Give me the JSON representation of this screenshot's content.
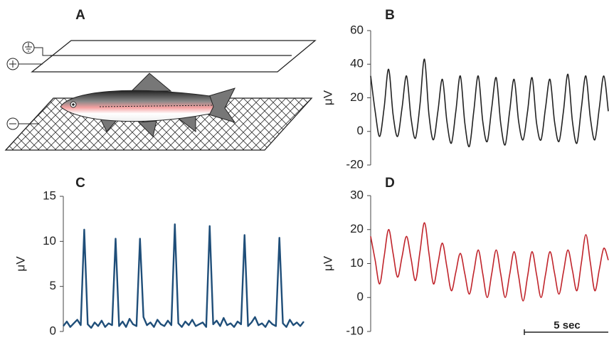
{
  "panel_a": {
    "label": "A"
  },
  "chart_data": [
    {
      "type": "line",
      "label": "B",
      "ylabel": "μV",
      "color": "#222222",
      "ylim": [
        -20,
        60
      ],
      "yticks": [
        -20,
        0,
        20,
        40,
        60
      ],
      "values": [
        33,
        12,
        -3,
        14,
        37,
        10,
        -3,
        14,
        33,
        8,
        -4,
        16,
        43,
        10,
        -5,
        12,
        31,
        6,
        -7,
        12,
        33,
        5,
        -9,
        12,
        33,
        6,
        -6,
        14,
        32,
        5,
        -8,
        12,
        31,
        6,
        -5,
        12,
        32,
        5,
        -5,
        14,
        31,
        6,
        -6,
        12,
        34,
        6,
        -7,
        14,
        33,
        8,
        -5,
        14,
        33,
        12
      ]
    },
    {
      "type": "line",
      "label": "C",
      "ylabel": "μV",
      "color": "#1f4e79",
      "ylim": [
        0,
        15
      ],
      "yticks": [
        0,
        5,
        10,
        15
      ],
      "values": [
        0.6,
        1.1,
        0.5,
        0.9,
        1.3,
        0.7,
        11.3,
        0.8,
        0.4,
        1.0,
        0.6,
        1.2,
        0.5,
        0.9,
        0.7,
        10.3,
        0.6,
        1.1,
        0.5,
        1.4,
        0.8,
        0.6,
        10.3,
        1.6,
        0.7,
        1.0,
        0.5,
        1.3,
        0.8,
        0.6,
        1.2,
        0.7,
        11.9,
        0.9,
        0.5,
        1.1,
        0.7,
        1.3,
        0.6,
        0.8,
        1.0,
        0.5,
        11.7,
        0.8,
        1.2,
        0.6,
        1.5,
        0.7,
        0.9,
        0.5,
        1.1,
        0.8,
        10.7,
        0.6,
        1.0,
        1.6,
        0.7,
        0.9,
        0.5,
        1.2,
        0.8,
        0.6,
        10.4,
        0.9,
        0.5,
        1.3,
        0.7,
        1.0,
        0.6,
        1.1
      ]
    },
    {
      "type": "line",
      "label": "D",
      "ylabel": "μV",
      "color": "#c0242b",
      "ylim": [
        -10,
        30
      ],
      "yticks": [
        -10,
        0,
        10,
        20,
        30
      ],
      "scale_bar": "5 sec",
      "values": [
        18,
        11,
        4,
        12,
        20,
        13,
        6,
        12,
        18,
        11.5,
        5,
        13.5,
        22,
        13,
        4,
        10,
        16,
        9,
        2,
        7.5,
        13,
        7,
        1,
        7.5,
        14,
        7,
        0,
        7,
        14,
        7,
        0,
        6.75,
        13.5,
        6.25,
        -1,
        6.25,
        13.5,
        6.75,
        0,
        6.75,
        13.5,
        7.25,
        1,
        7.5,
        14,
        8,
        2,
        10.25,
        18.5,
        10.25,
        2,
        8.25,
        14.5,
        11
      ]
    }
  ]
}
